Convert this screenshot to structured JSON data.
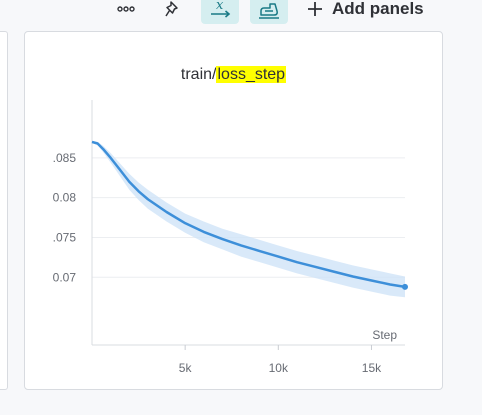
{
  "toolbar": {
    "more_icon": "more-horizontal-icon",
    "pin_icon": "pin-icon",
    "x_axis_icon": "x-axis-icon",
    "run_icon": "run-icon",
    "add_panels_label": "Add panels",
    "accent": "#d5eef0"
  },
  "panel": {
    "title_prefix": "train/",
    "title_highlight": "loss_step",
    "highlight_color": "#ffff00"
  },
  "chart_data": {
    "type": "line",
    "title": "train/loss_step",
    "xlabel": "Step",
    "ylabel": "",
    "xlim": [
      0,
      16800
    ],
    "ylim": [
      0.0615,
      0.0895
    ],
    "x_ticks": [
      5000,
      10000,
      15000
    ],
    "x_tick_labels": [
      "5k",
      "10k",
      "15k"
    ],
    "y_ticks": [
      0.085,
      0.08,
      0.075,
      0.07
    ],
    "y_tick_labels": [
      ".085",
      "0.08",
      ".075",
      "0.07"
    ],
    "grid": true,
    "legend": "none",
    "series": [
      {
        "color": "#3d8fd9",
        "band_color": "#cfe4f7",
        "x": [
          0,
          300,
          600,
          1000,
          1500,
          2000,
          2500,
          3000,
          4000,
          5000,
          6000,
          7000,
          8000,
          9000,
          10000,
          11000,
          12000,
          13000,
          14000,
          15000,
          16000,
          16800
        ],
        "values": [
          0.087,
          0.0868,
          0.0861,
          0.085,
          0.0835,
          0.082,
          0.0808,
          0.0798,
          0.0782,
          0.0768,
          0.0757,
          0.0748,
          0.074,
          0.0733,
          0.0726,
          0.0719,
          0.0713,
          0.0707,
          0.0701,
          0.0696,
          0.0691,
          0.0688
        ],
        "band_halfwidth": [
          0.0001,
          0.0002,
          0.0004,
          0.0006,
          0.0008,
          0.001,
          0.0011,
          0.0012,
          0.0012,
          0.0012,
          0.0013,
          0.0013,
          0.0014,
          0.0014,
          0.0014,
          0.0014,
          0.0014,
          0.0014,
          0.0014,
          0.0014,
          0.0014,
          0.0013
        ]
      }
    ]
  }
}
